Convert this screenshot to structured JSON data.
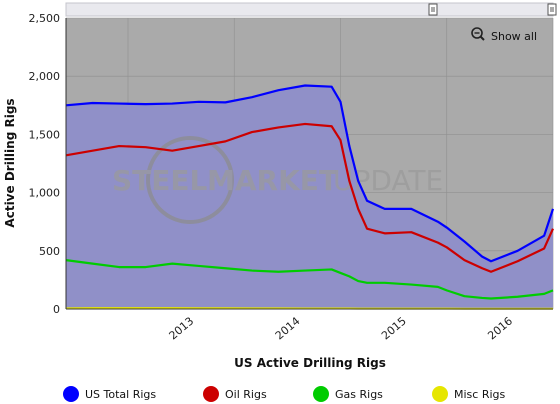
{
  "chart_data": {
    "type": "area",
    "title": "",
    "xlabel": "US Active Drilling Rigs",
    "ylabel": "Active Drilling Rigs",
    "ylim": [
      0,
      2500
    ],
    "yticks": [
      "0",
      "500",
      "1,000",
      "1,500",
      "2,000",
      "2,500"
    ],
    "xticks": [
      "2013",
      "2014",
      "2015",
      "2016"
    ],
    "x": [
      "2012-06",
      "2012-09",
      "2012-12",
      "2013-03",
      "2013-06",
      "2013-09",
      "2013-12",
      "2014-03",
      "2014-06",
      "2014-09",
      "2014-12",
      "2015-01",
      "2015-02",
      "2015-03",
      "2015-04",
      "2015-06",
      "2015-09",
      "2015-12",
      "2016-01",
      "2016-03",
      "2016-05",
      "2016-06",
      "2016-09",
      "2016-12",
      "2017-01"
    ],
    "series": [
      {
        "name": "US Total Rigs",
        "color": "#0000ff",
        "values": [
          1750,
          1770,
          1765,
          1760,
          1765,
          1780,
          1775,
          1820,
          1880,
          1920,
          1910,
          1780,
          1400,
          1100,
          930,
          860,
          860,
          750,
          700,
          580,
          450,
          410,
          500,
          630,
          860
        ]
      },
      {
        "name": "Oil Rigs",
        "color": "#cc0000",
        "values": [
          1320,
          1360,
          1400,
          1390,
          1360,
          1400,
          1440,
          1520,
          1560,
          1590,
          1570,
          1450,
          1100,
          860,
          690,
          650,
          660,
          570,
          530,
          420,
          350,
          320,
          410,
          520,
          690
        ]
      },
      {
        "name": "Gas Rigs",
        "color": "#00cc00",
        "values": [
          420,
          390,
          360,
          360,
          390,
          370,
          350,
          330,
          320,
          330,
          340,
          310,
          280,
          240,
          225,
          225,
          210,
          190,
          160,
          110,
          95,
          90,
          105,
          130,
          160
        ]
      },
      {
        "name": "Misc Rigs",
        "color": "#e6e600",
        "values": [
          5,
          8,
          8,
          8,
          8,
          6,
          6,
          5,
          5,
          4,
          4,
          4,
          4,
          3,
          3,
          3,
          3,
          3,
          3,
          2,
          2,
          2,
          2,
          2,
          2
        ]
      }
    ],
    "legend_placement": "bottom"
  },
  "controls": {
    "show_all_label": "Show all"
  },
  "watermark": {
    "text_left": "STEEL",
    "text_mid": "MARKET",
    "text_right": "UPDATE"
  }
}
